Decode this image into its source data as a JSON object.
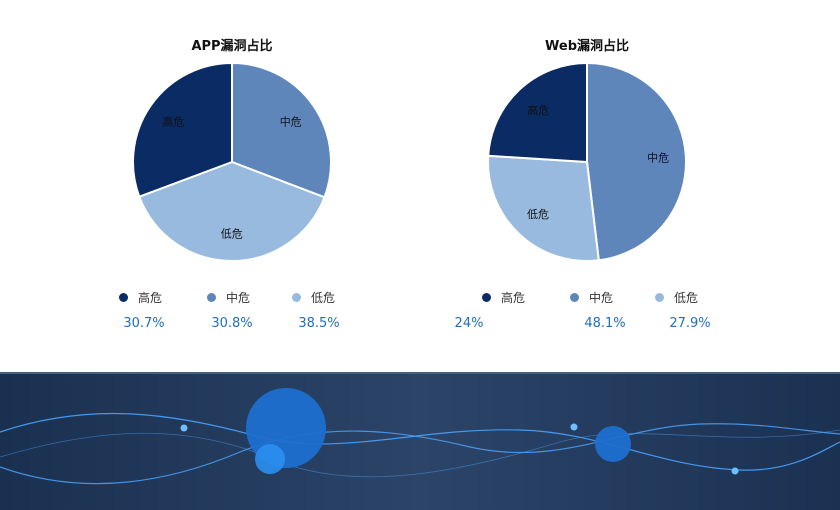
{
  "chart_data": [
    {
      "type": "pie",
      "title": "APP漏洞占比",
      "categories": [
        "高危",
        "中危",
        "低危"
      ],
      "values": [
        30.7,
        30.8,
        38.5
      ],
      "value_labels": [
        "30.7%",
        "30.8%",
        "38.5%"
      ],
      "colors": [
        "#0a2b63",
        "#5f86bb",
        "#98bade"
      ]
    },
    {
      "type": "pie",
      "title": "Web漏洞占比",
      "categories": [
        "高危",
        "中危",
        "低危"
      ],
      "values": [
        24,
        48.1,
        27.9
      ],
      "value_labels": [
        "24%",
        "48.1%",
        "27.9%"
      ],
      "colors": [
        "#0a2b63",
        "#5f86bb",
        "#98bade"
      ]
    }
  ],
  "colors": {
    "accent_text": "#1f6fbf",
    "banner_bg": "#1e3352",
    "wave": "#4aa3ff"
  }
}
